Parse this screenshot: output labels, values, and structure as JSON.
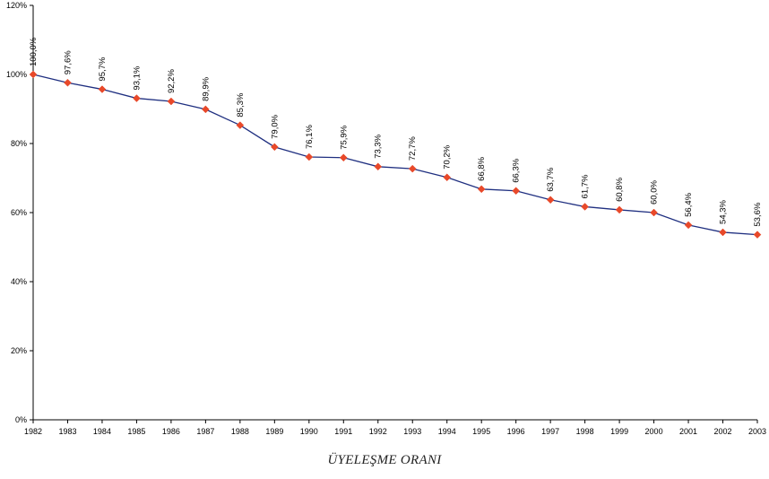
{
  "chart_data": {
    "type": "line",
    "title": "",
    "xlabel": "ÜYELEŞME ORANI",
    "ylabel": "",
    "ylim": [
      0,
      120
    ],
    "yticks": [
      "0%",
      "20%",
      "40%",
      "60%",
      "80%",
      "100%",
      "120%"
    ],
    "grid": false,
    "categories": [
      "1982",
      "1983",
      "1984",
      "1985",
      "1986",
      "1987",
      "1988",
      "1989",
      "1990",
      "1991",
      "1992",
      "1993",
      "1994",
      "1995",
      "1996",
      "1997",
      "1998",
      "1999",
      "2000",
      "2001",
      "2002",
      "2003"
    ],
    "series": [
      {
        "values": [
          100.0,
          97.6,
          95.7,
          93.1,
          92.2,
          89.9,
          85.3,
          79.0,
          76.1,
          75.9,
          73.3,
          72.7,
          70.2,
          66.8,
          66.3,
          63.7,
          61.7,
          60.8,
          60.0,
          56.4,
          54.3,
          53.6
        ],
        "labels": [
          "100,0%",
          "97,6%",
          "95,7%",
          "93,1%",
          "92,2%",
          "89,9%",
          "85,3%",
          "79,0%",
          "76,1%",
          "75,9%",
          "73,3%",
          "72,7%",
          "70,2%",
          "66,8%",
          "66,3%",
          "63,7%",
          "61,7%",
          "60,8%",
          "60,0%",
          "56,4%",
          "54,3%",
          "53,6%"
        ],
        "line_color": "#1f2f80",
        "marker_color": "#e8492a"
      }
    ]
  }
}
